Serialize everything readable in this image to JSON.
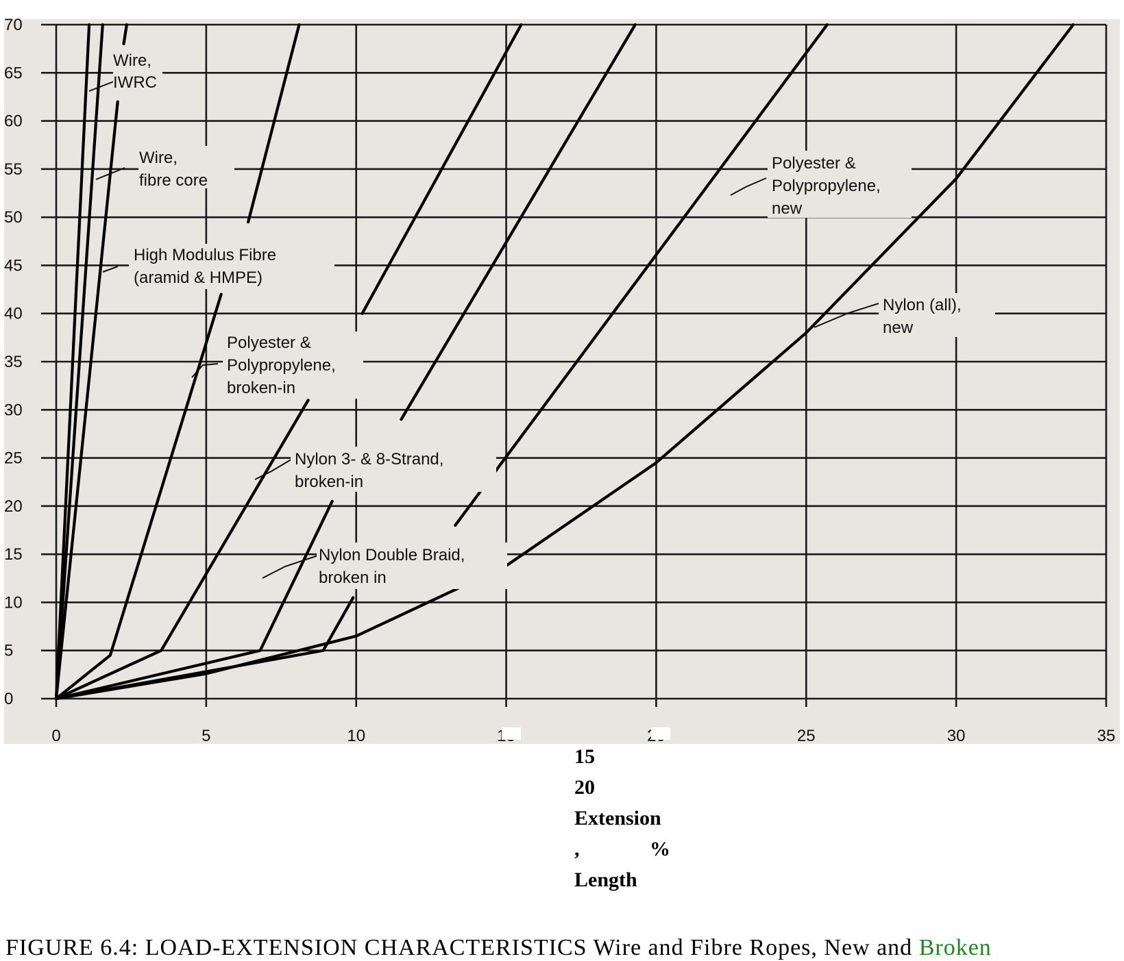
{
  "chart_data": {
    "type": "line",
    "xlabel_lines": [
      "15",
      "20",
      "Extension",
      ",",
      "%",
      "Length"
    ],
    "xlim": [
      0,
      35
    ],
    "ylim": [
      0,
      70
    ],
    "x_ticks": [
      "0",
      "5",
      "10",
      "15",
      "20",
      "25",
      "30",
      "35"
    ],
    "y_ticks": [
      "0",
      "5",
      "10",
      "15",
      "20",
      "25",
      "30",
      "35",
      "40",
      "45",
      "50",
      "55",
      "60",
      "65",
      "70"
    ],
    "grid": true,
    "series": [
      {
        "name": "Wire, IWRC (a)",
        "points": [
          [
            0,
            0
          ],
          [
            1.1,
            70
          ]
        ]
      },
      {
        "name": "Wire, IWRC (b)",
        "points": [
          [
            0,
            0
          ],
          [
            1.55,
            70
          ]
        ]
      },
      {
        "name": "Wire, fibre core",
        "points": [
          [
            0,
            0
          ],
          [
            2.05,
            62
          ]
        ]
      },
      {
        "name": "Wire, fibre core (top)",
        "points": [
          [
            2.25,
            68
          ],
          [
            2.35,
            70
          ]
        ]
      },
      {
        "name": "High Modulus Fibre (a)",
        "points": [
          [
            0,
            0
          ],
          [
            1.8,
            4.5
          ],
          [
            5.5,
            42
          ]
        ]
      },
      {
        "name": "High Modulus Fibre (b)",
        "points": [
          [
            6.4,
            49.5
          ],
          [
            8.1,
            70
          ]
        ]
      },
      {
        "name": "Polyester & Polypropylene, broken-in (a)",
        "points": [
          [
            0,
            0
          ],
          [
            3.5,
            5
          ],
          [
            8.4,
            31
          ]
        ]
      },
      {
        "name": "Polyester & Polypropylene, broken-in (b)",
        "points": [
          [
            10.2,
            40
          ],
          [
            15.5,
            70
          ]
        ]
      },
      {
        "name": "Nylon 3- & 8-Strand, broken-in (a)",
        "points": [
          [
            0,
            0
          ],
          [
            6.8,
            5
          ],
          [
            9.2,
            20.5
          ]
        ]
      },
      {
        "name": "Nylon 3- & 8-Strand, broken-in (b)",
        "points": [
          [
            11.5,
            29
          ],
          [
            19.3,
            70
          ]
        ]
      },
      {
        "name": "Nylon Double Braid, broken in (a)",
        "points": [
          [
            0,
            0
          ],
          [
            8.9,
            5
          ],
          [
            9.9,
            10.5
          ]
        ]
      },
      {
        "name": "Nylon Double Braid, broken in (b)",
        "points": [
          [
            13.3,
            18
          ],
          [
            25.7,
            70
          ]
        ]
      },
      {
        "name": "Nylon (all), new",
        "points": [
          [
            0,
            0
          ],
          [
            5,
            2.6
          ],
          [
            10,
            6.5
          ],
          [
            15,
            13.8
          ],
          [
            20,
            24.5
          ],
          [
            25,
            38
          ],
          [
            30,
            54
          ],
          [
            33.9,
            70
          ]
        ]
      }
    ],
    "annotations": [
      {
        "lines": [
          "Wire,",
          "IWRC"
        ]
      },
      {
        "lines": [
          "Wire,",
          "fibre core"
        ]
      },
      {
        "lines": [
          "High Modulus Fibre",
          "(aramid & HMPE)"
        ]
      },
      {
        "lines": [
          "Polyester &",
          "Polypropylene,",
          "broken-in"
        ]
      },
      {
        "lines": [
          "Nylon 3- & 8-Strand,",
          "broken-in"
        ]
      },
      {
        "lines": [
          "Nylon Double Braid,",
          "broken in"
        ]
      },
      {
        "lines": [
          "Polyester &",
          "Polypropylene,",
          "new"
        ]
      },
      {
        "lines": [
          "Nylon (all),",
          "new"
        ]
      }
    ]
  },
  "caption": {
    "main": "FIGURE 6.4: LOAD-EXTENSION CHARACTERISTICS Wire and Fibre Ropes, New and ",
    "green": "Broken"
  }
}
